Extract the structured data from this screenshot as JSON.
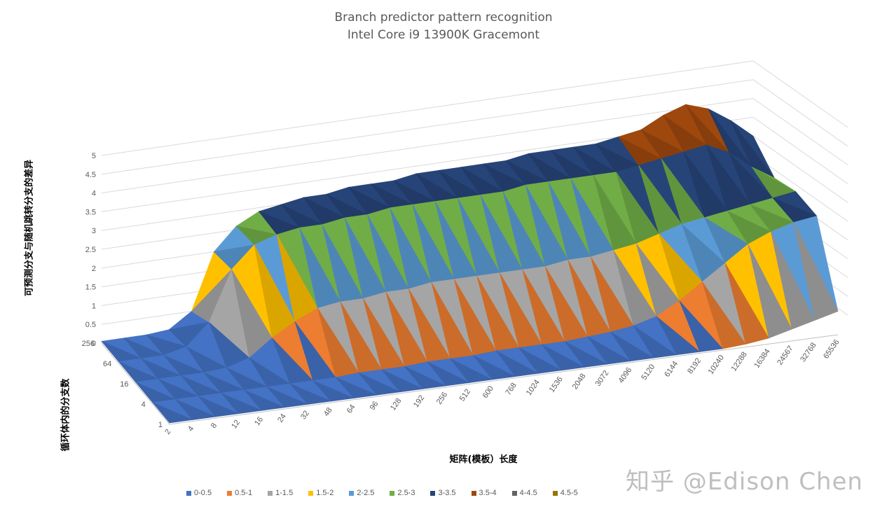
{
  "chart_data": {
    "type": "surface",
    "title": "Branch predictor pattern recognition",
    "subtitle": "Intel Core i9 13900K Gracemont",
    "ylabel": "可预测分支与随机跳转分支的差异",
    "xlabel": "矩阵(模板）长度",
    "zlabel": "循环体内的分支数",
    "ylim": [
      0,
      5
    ],
    "y_ticks": [
      "0",
      "0.5",
      "1",
      "1.5",
      "2",
      "2.5",
      "3",
      "3.5",
      "4",
      "4.5",
      "5"
    ],
    "x_categories": [
      "2",
      "4",
      "8",
      "12",
      "16",
      "24",
      "32",
      "48",
      "64",
      "96",
      "128",
      "192",
      "256",
      "512",
      "600",
      "768",
      "1024",
      "1536",
      "2048",
      "3072",
      "4096",
      "5120",
      "6144",
      "8192",
      "10240",
      "12288",
      "16384",
      "24567",
      "32768",
      "65536"
    ],
    "z_categories": [
      "1",
      "4",
      "16",
      "64",
      "256"
    ],
    "series_bands": [
      {
        "name": "0-0.5",
        "color": "#4472c4"
      },
      {
        "name": "0.5-1",
        "color": "#ed7d31"
      },
      {
        "name": "1-1.5",
        "color": "#a5a5a5"
      },
      {
        "name": "1.5-2",
        "color": "#ffc000"
      },
      {
        "name": "2-2.5",
        "color": "#5b9bd5"
      },
      {
        "name": "2.5-3",
        "color": "#70ad47"
      },
      {
        "name": "3-3.5",
        "color": "#264478"
      },
      {
        "name": "3.5-4",
        "color": "#9e480e"
      },
      {
        "name": "4-4.5",
        "color": "#636363"
      },
      {
        "name": "4.5-5",
        "color": "#997300"
      }
    ],
    "values": [
      [
        0.05,
        0.05,
        0.05,
        0.05,
        0.05,
        0.05,
        0.05,
        0.05,
        0.05,
        0.05,
        0.05,
        0.05,
        0.05,
        0.05,
        0.05,
        0.05,
        0.05,
        0.05,
        0.05,
        0.05,
        0.05,
        0.05,
        0.05,
        0.05,
        0.05,
        0.1,
        0.2,
        0.4,
        0.6,
        0.8
      ],
      [
        0.05,
        0.05,
        0.05,
        0.05,
        0.05,
        0.05,
        0.05,
        0.05,
        0.05,
        0.1,
        0.1,
        0.1,
        0.15,
        0.15,
        0.15,
        0.2,
        0.2,
        0.2,
        0.2,
        0.25,
        0.3,
        0.4,
        0.6,
        1.0,
        1.5,
        2.0,
        2.5,
        2.8,
        3.0,
        3.1
      ],
      [
        0.05,
        0.05,
        0.05,
        0.05,
        0.1,
        0.3,
        0.8,
        1.2,
        1.5,
        1.6,
        1.6,
        1.7,
        1.7,
        1.8,
        1.8,
        1.8,
        1.8,
        1.8,
        1.8,
        1.9,
        1.9,
        2.0,
        2.1,
        2.3,
        2.5,
        2.6,
        2.7,
        2.8,
        2.9,
        3.0
      ],
      [
        0.05,
        0.05,
        0.05,
        0.2,
        0.8,
        2.2,
        2.8,
        3.0,
        3.1,
        3.1,
        3.2,
        3.2,
        3.3,
        3.3,
        3.3,
        3.3,
        3.3,
        3.3,
        3.4,
        3.4,
        3.4,
        3.4,
        3.4,
        3.5,
        3.6,
        3.7,
        3.8,
        3.5,
        3.0,
        2.6
      ],
      [
        0.05,
        0.05,
        0.05,
        0.1,
        0.5,
        2.0,
        2.6,
        2.9,
        3.0,
        3.1,
        3.1,
        3.2,
        3.2,
        3.2,
        3.3,
        3.3,
        3.3,
        3.3,
        3.3,
        3.4,
        3.4,
        3.4,
        3.4,
        3.5,
        3.6,
        3.9,
        4.1,
        3.9,
        3.5,
        3.0
      ]
    ],
    "legend_position": "bottom",
    "grid": true
  },
  "watermark": "知乎 @Edison Chen"
}
